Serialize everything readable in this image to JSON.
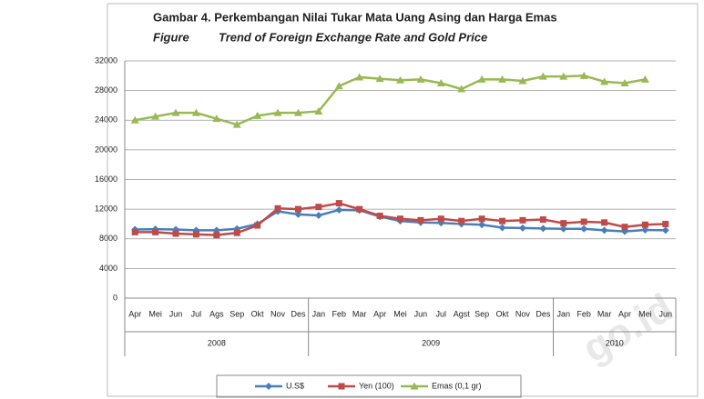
{
  "chart_data": {
    "type": "line",
    "title": "Gambar 4. Perkembangan Nilai Tukar Mata Uang Asing dan Harga Emas",
    "subtitle_label": "Figure",
    "subtitle": "Trend of Foreign Exchange Rate and Gold Price",
    "categories": [
      "Apr",
      "Mei",
      "Jun",
      "Jul",
      "Ags",
      "Sep",
      "Okt",
      "Nov",
      "Des",
      "Jan",
      "Feb",
      "Mar",
      "Apr",
      "Mei",
      "Jun",
      "Jul",
      "Agst",
      "Sep",
      "Okt",
      "Nov",
      "Des",
      "Jan",
      "Feb",
      "Mar",
      "Apr",
      "Mei",
      "Jun"
    ],
    "years": [
      "2008",
      "2009",
      "2010"
    ],
    "ylim": [
      0,
      32000
    ],
    "yticks": [
      0,
      4000,
      8000,
      12000,
      16000,
      20000,
      24000,
      28000,
      32000
    ],
    "grid": true,
    "legend": "bottom",
    "watermark": "go.id",
    "series": [
      {
        "name": "U.S$",
        "color": "#4a7ebb",
        "marker": "diamond",
        "values": [
          9250,
          9300,
          9250,
          9150,
          9150,
          9350,
          10000,
          11700,
          11300,
          11150,
          11900,
          11850,
          11000,
          10400,
          10200,
          10150,
          10000,
          9900,
          9500,
          9450,
          9400,
          9350,
          9350,
          9150,
          9000,
          9200,
          9150
        ]
      },
      {
        "name": "Yen (100)",
        "color": "#be4b48",
        "marker": "square",
        "values": [
          8900,
          8900,
          8700,
          8600,
          8500,
          8800,
          9800,
          12100,
          12000,
          12300,
          12800,
          12000,
          11100,
          10700,
          10500,
          10700,
          10400,
          10700,
          10400,
          10500,
          10600,
          10100,
          10300,
          10200,
          9600,
          9900,
          10000
        ]
      },
      {
        "name": "Emas (0,1 gr)",
        "color": "#98b954",
        "marker": "triangle",
        "values": [
          24000,
          24500,
          25000,
          25000,
          24200,
          23400,
          24600,
          25000,
          25000,
          25200,
          28600,
          29800,
          29600,
          29400,
          29500,
          29000,
          28200,
          29500,
          29500,
          29300,
          29900,
          29900,
          30000,
          29200,
          29000,
          29500,
          null
        ]
      }
    ]
  }
}
